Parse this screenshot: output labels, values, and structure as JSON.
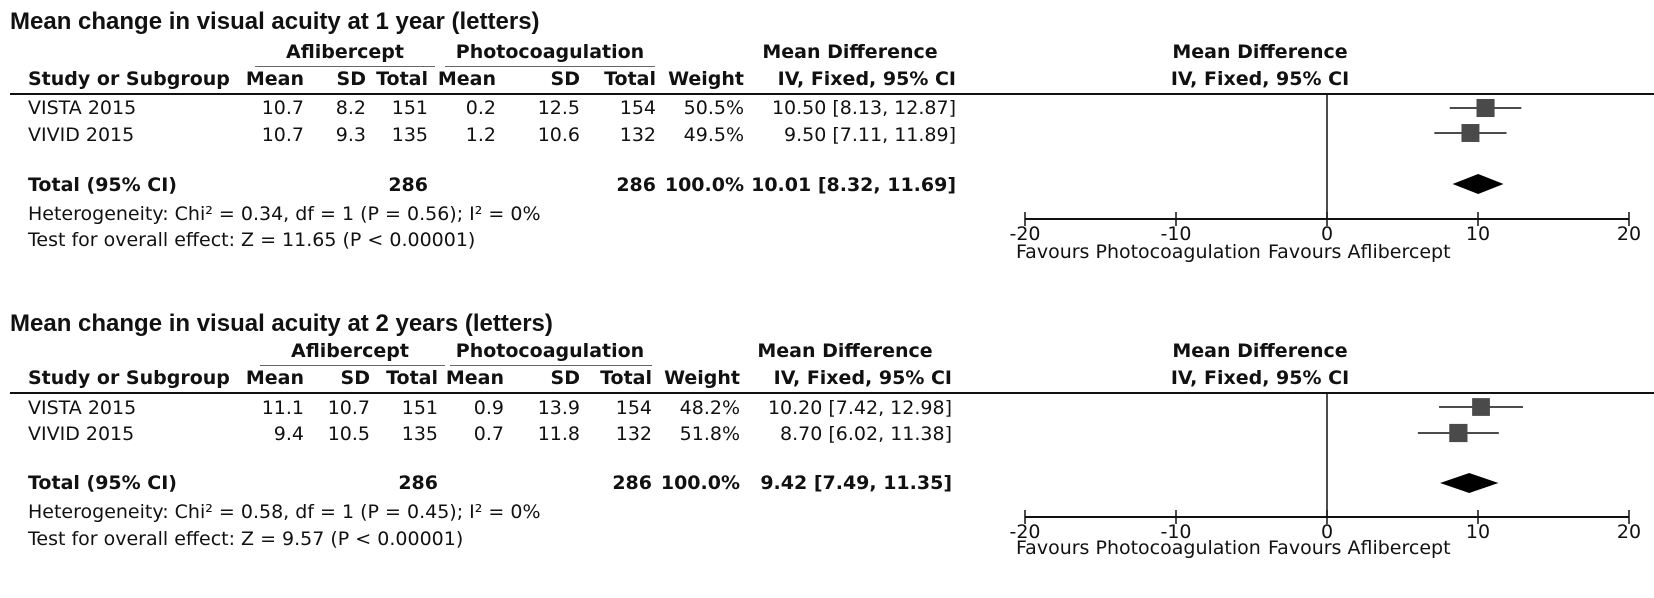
{
  "panels": [
    {
      "title": "Mean change in visual acuity at 1 year (letters)",
      "header": {
        "group1": "Aflibercept",
        "group2": "Photocoagulation",
        "effect_col": "Mean Difference",
        "effect_sub": "IV, Fixed, 95% CI",
        "plot_col": "Mean Difference",
        "plot_sub": "IV, Fixed, 95% CI",
        "study": "Study or Subgroup",
        "mean": "Mean",
        "sd": "SD",
        "total": "Total",
        "weight": "Weight"
      },
      "studies": [
        {
          "name": "VISTA 2015",
          "m1": "10.7",
          "sd1": "8.2",
          "n1": "151",
          "m2": "0.2",
          "sd2": "12.5",
          "n2": "154",
          "weight": "50.5%",
          "ci": "10.50 [8.13, 12.87]"
        },
        {
          "name": "VIVID 2015",
          "m1": "10.7",
          "sd1": "9.3",
          "n1": "135",
          "m2": "1.2",
          "sd2": "10.6",
          "n2": "132",
          "weight": "49.5%",
          "ci": "9.50 [7.11, 11.89]"
        }
      ],
      "total": {
        "label": "Total (95% CI)",
        "n1": "286",
        "n2": "286",
        "weight": "100.0%",
        "ci": "10.01 [8.32, 11.69]"
      },
      "heterogeneity": "Heterogeneity: Chi² = 0.34, df = 1 (P = 0.56); I² = 0%",
      "overall": "Test for overall effect: Z = 11.65 (P < 0.00001)",
      "axis_ticks": [
        "-20",
        "-10",
        "0",
        "10",
        "20"
      ],
      "favours_left": "Favours Photocoagulation",
      "favours_right": "Favours Aflibercept"
    },
    {
      "title": "Mean change in visual acuity at 2 years (letters)",
      "header": {
        "group1": "Aflibercept",
        "group2": "Photocoagulation",
        "effect_col": "Mean Difference",
        "effect_sub": "IV, Fixed, 95% CI",
        "plot_col": "Mean Difference",
        "plot_sub": "IV, Fixed, 95% CI",
        "study": "Study or Subgroup",
        "mean": "Mean",
        "sd": "SD",
        "total": "Total",
        "weight": "Weight"
      },
      "studies": [
        {
          "name": "VISTA 2015",
          "m1": "11.1",
          "sd1": "10.7",
          "n1": "151",
          "m2": "0.9",
          "sd2": "13.9",
          "n2": "154",
          "weight": "48.2%",
          "ci": "10.20 [7.42, 12.98]"
        },
        {
          "name": "VIVID 2015",
          "m1": "9.4",
          "sd1": "10.5",
          "n1": "135",
          "m2": "0.7",
          "sd2": "11.8",
          "n2": "132",
          "weight": "51.8%",
          "ci": "8.70 [6.02, 11.38]"
        }
      ],
      "total": {
        "label": "Total (95% CI)",
        "n1": "286",
        "n2": "286",
        "weight": "100.0%",
        "ci": "9.42 [7.49, 11.35]"
      },
      "heterogeneity": "Heterogeneity: Chi² = 0.58, df = 1 (P = 0.45); I² = 0%",
      "overall": "Test for overall effect: Z = 9.57 (P < 0.00001)",
      "axis_ticks": [
        "-20",
        "-10",
        "0",
        "10",
        "20"
      ],
      "favours_left": "Favours Photocoagulation",
      "favours_right": "Favours Aflibercept"
    }
  ],
  "chart_data": [
    {
      "type": "forest",
      "title": "Mean change in visual acuity at 1 year (letters)",
      "xlim": [
        -20,
        20
      ],
      "studies": [
        {
          "name": "VISTA 2015",
          "estimate": 10.5,
          "lower": 8.13,
          "upper": 12.87,
          "weight": 50.5
        },
        {
          "name": "VIVID 2015",
          "estimate": 9.5,
          "lower": 7.11,
          "upper": 11.89,
          "weight": 49.5
        }
      ],
      "pooled": {
        "estimate": 10.01,
        "lower": 8.32,
        "upper": 11.69
      }
    },
    {
      "type": "forest",
      "title": "Mean change in visual acuity at 2 years (letters)",
      "xlim": [
        -20,
        20
      ],
      "studies": [
        {
          "name": "VISTA 2015",
          "estimate": 10.2,
          "lower": 7.42,
          "upper": 12.98,
          "weight": 48.2
        },
        {
          "name": "VIVID 2015",
          "estimate": 8.7,
          "lower": 6.02,
          "upper": 11.38,
          "weight": 51.8
        }
      ],
      "pooled": {
        "estimate": 9.42,
        "lower": 7.49,
        "upper": 11.35
      }
    }
  ]
}
